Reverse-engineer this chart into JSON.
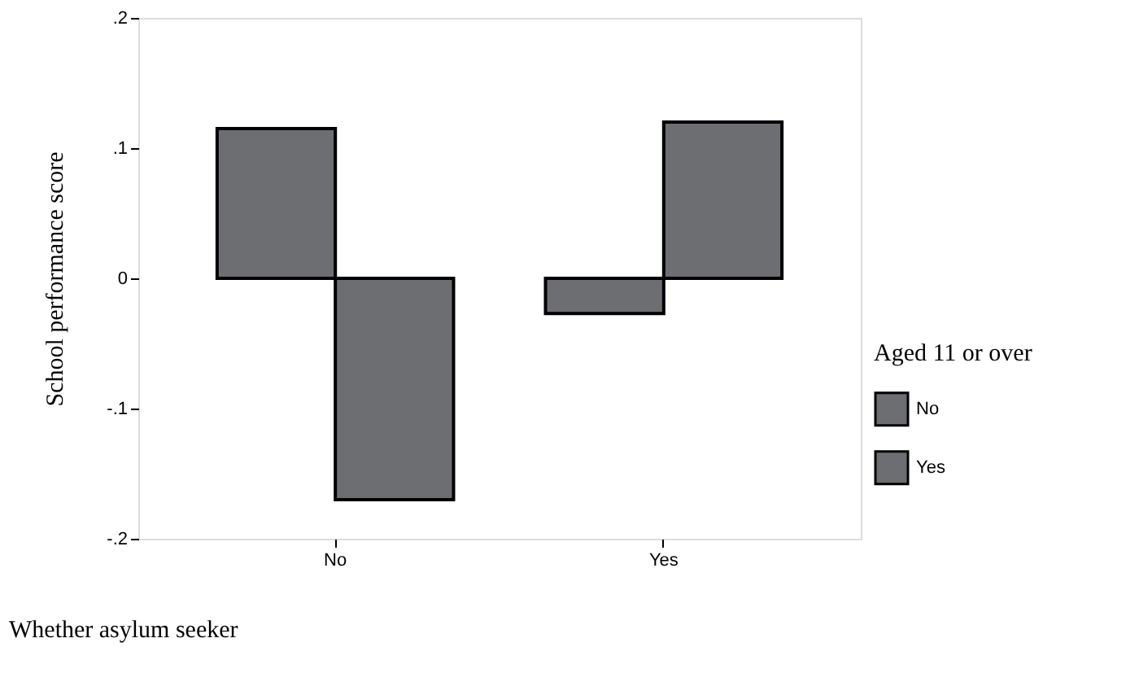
{
  "chart_data": {
    "type": "bar",
    "xlabel": "Whether asylum seeker",
    "ylabel": "School performance score",
    "legend_title": "Aged 11 or over",
    "categories": [
      "No",
      "Yes"
    ],
    "series": [
      {
        "name": "No",
        "color": "#6d6e71",
        "values": [
          0.115,
          -0.027
        ]
      },
      {
        "name": "Yes",
        "color": "#6d6e71",
        "values": [
          -0.17,
          0.12
        ]
      }
    ],
    "ylim": [
      -0.2,
      0.2
    ],
    "yticks": [
      {
        "value": -0.2,
        "label": "-.2"
      },
      {
        "value": -0.1,
        "label": "-.1"
      },
      0,
      {
        "value": 0.1,
        "label": ".1"
      },
      {
        "value": 0.2,
        "label": ".2"
      }
    ],
    "grid": false,
    "legend": "right"
  }
}
